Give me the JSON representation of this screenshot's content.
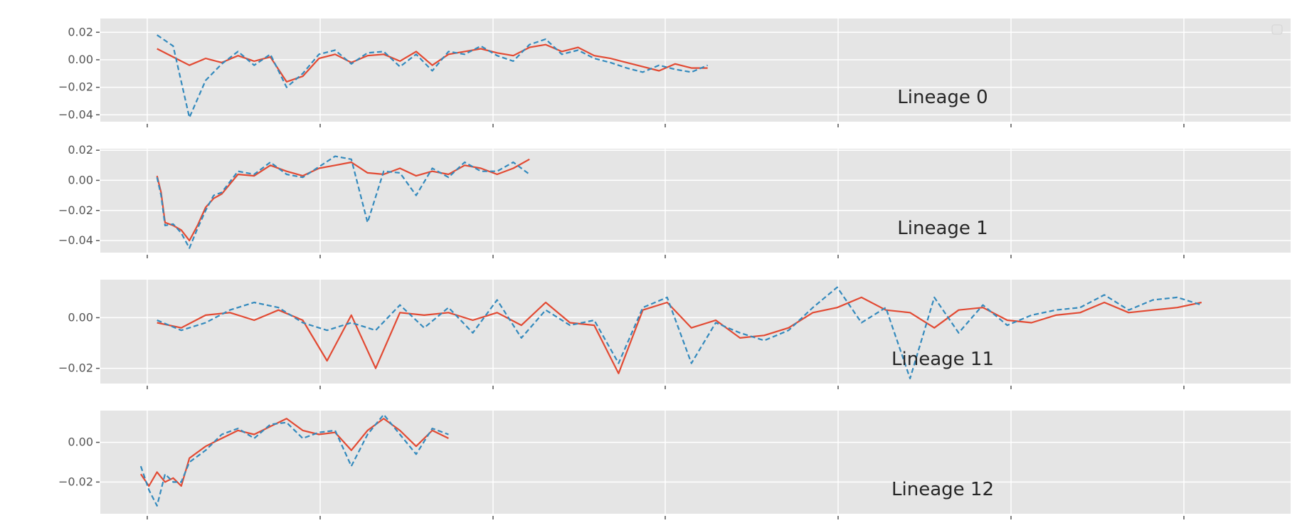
{
  "chart_data": [
    {
      "type": "line",
      "annotation": "Lineage 0",
      "xlim": [
        0,
        1470
      ],
      "ylim": [
        -0.045,
        0.03
      ],
      "yticks": [
        -0.04,
        -0.02,
        0.0,
        0.02
      ],
      "ytick_labels": [
        "−0.04",
        "−0.02",
        "0.00",
        "0.02"
      ],
      "xticks": [
        40,
        240,
        440,
        640,
        840,
        1040,
        1240,
        1440
      ],
      "grid": true,
      "legend": "empty, top-right",
      "series": [
        {
          "style": "solid",
          "color": "#E24A33",
          "x": [
            70,
            90,
            110,
            130,
            150,
            170,
            190,
            210,
            230,
            250,
            270,
            290,
            310,
            330,
            350,
            370,
            390,
            410,
            430,
            450,
            470,
            490,
            510,
            530,
            550,
            570,
            590,
            610,
            630,
            650,
            670,
            690,
            710,
            730,
            750
          ],
          "y": [
            0.008,
            0.002,
            -0.004,
            0.001,
            -0.002,
            0.003,
            -0.001,
            0.002,
            -0.016,
            -0.012,
            0.001,
            0.004,
            -0.002,
            0.003,
            0.004,
            -0.001,
            0.006,
            -0.004,
            0.004,
            0.006,
            0.008,
            0.005,
            0.003,
            0.009,
            0.011,
            0.006,
            0.009,
            0.003,
            0.001,
            -0.002,
            -0.005,
            -0.008,
            -0.003,
            -0.006,
            -0.006
          ]
        },
        {
          "style": "dashed",
          "color": "#348ABD",
          "x": [
            70,
            90,
            110,
            130,
            150,
            170,
            190,
            210,
            230,
            250,
            270,
            290,
            310,
            330,
            350,
            370,
            390,
            410,
            430,
            450,
            470,
            490,
            510,
            530,
            550,
            570,
            590,
            610,
            630,
            650,
            670,
            690,
            710,
            730,
            750
          ],
          "y": [
            0.018,
            0.01,
            -0.042,
            -0.015,
            -0.003,
            0.006,
            -0.004,
            0.004,
            -0.02,
            -0.01,
            0.004,
            0.007,
            -0.003,
            0.005,
            0.006,
            -0.005,
            0.004,
            -0.008,
            0.006,
            0.004,
            0.01,
            0.003,
            -0.001,
            0.011,
            0.015,
            0.004,
            0.007,
            0.001,
            -0.002,
            -0.006,
            -0.009,
            -0.004,
            -0.007,
            -0.009,
            -0.004
          ]
        }
      ]
    },
    {
      "type": "line",
      "annotation": "Lineage 1",
      "xlim": [
        0,
        1470
      ],
      "ylim": [
        -0.048,
        0.021
      ],
      "yticks": [
        -0.04,
        -0.02,
        0.0,
        0.02
      ],
      "ytick_labels": [
        "−0.04",
        "−0.02",
        "0.00",
        "0.02"
      ],
      "xticks": [
        40,
        240,
        440,
        640,
        840,
        1040,
        1240,
        1440
      ],
      "grid": true,
      "legend": "none",
      "series": [
        {
          "style": "solid",
          "color": "#E24A33",
          "x": [
            70,
            75,
            80,
            90,
            100,
            110,
            120,
            130,
            140,
            150,
            170,
            190,
            210,
            230,
            250,
            270,
            290,
            310,
            330,
            350,
            370,
            390,
            410,
            430,
            450,
            470,
            490,
            510,
            530
          ],
          "y": [
            0.003,
            -0.008,
            -0.028,
            -0.03,
            -0.033,
            -0.04,
            -0.03,
            -0.018,
            -0.012,
            -0.009,
            0.004,
            0.003,
            0.01,
            0.006,
            0.003,
            0.008,
            0.01,
            0.012,
            0.005,
            0.004,
            0.008,
            0.003,
            0.006,
            0.004,
            0.01,
            0.008,
            0.004,
            0.008,
            0.014
          ]
        },
        {
          "style": "dashed",
          "color": "#348ABD",
          "x": [
            70,
            75,
            80,
            90,
            100,
            110,
            120,
            130,
            140,
            150,
            170,
            190,
            210,
            230,
            250,
            270,
            290,
            310,
            330,
            350,
            370,
            390,
            410,
            430,
            450,
            470,
            490,
            510,
            530
          ],
          "y": [
            0.002,
            -0.01,
            -0.03,
            -0.029,
            -0.035,
            -0.045,
            -0.032,
            -0.02,
            -0.01,
            -0.008,
            0.006,
            0.004,
            0.012,
            0.004,
            0.002,
            0.009,
            0.016,
            0.014,
            -0.028,
            0.006,
            0.005,
            -0.01,
            0.008,
            0.002,
            0.012,
            0.006,
            0.006,
            0.012,
            0.004
          ]
        }
      ]
    },
    {
      "type": "line",
      "annotation": "Lineage 11",
      "xlim": [
        0,
        1470
      ],
      "ylim": [
        -0.026,
        0.015
      ],
      "yticks": [
        -0.02,
        0.0
      ],
      "ytick_labels": [
        "−0.02",
        "0.00"
      ],
      "xticks": [
        40,
        240,
        440,
        640,
        840,
        1040,
        1240,
        1440
      ],
      "grid": true,
      "legend": "none",
      "series": [
        {
          "style": "solid",
          "color": "#E24A33",
          "x": [
            70,
            100,
            130,
            160,
            190,
            220,
            250,
            280,
            310,
            340,
            370,
            400,
            430,
            460,
            490,
            520,
            550,
            580,
            610,
            640,
            670,
            700,
            730,
            760,
            790,
            820,
            850,
            880,
            910,
            940,
            970,
            1000,
            1030,
            1060,
            1090,
            1120,
            1150,
            1180,
            1210,
            1240,
            1270,
            1300,
            1330,
            1360
          ],
          "y": [
            -0.002,
            -0.004,
            0.001,
            0.002,
            -0.001,
            0.003,
            -0.001,
            -0.017,
            0.001,
            -0.02,
            0.002,
            0.001,
            0.002,
            -0.001,
            0.002,
            -0.003,
            0.006,
            -0.002,
            -0.003,
            -0.022,
            0.003,
            0.006,
            -0.004,
            -0.001,
            -0.008,
            -0.007,
            -0.004,
            0.002,
            0.004,
            0.008,
            0.003,
            0.002,
            -0.004,
            0.003,
            0.004,
            -0.001,
            -0.002,
            0.001,
            0.002,
            0.006,
            0.002,
            0.003,
            0.004,
            0.006
          ]
        },
        {
          "style": "dashed",
          "color": "#348ABD",
          "x": [
            70,
            100,
            130,
            160,
            190,
            220,
            250,
            280,
            310,
            340,
            370,
            400,
            430,
            460,
            490,
            520,
            550,
            580,
            610,
            640,
            670,
            700,
            730,
            760,
            790,
            820,
            850,
            880,
            910,
            940,
            970,
            1000,
            1030,
            1060,
            1090,
            1120,
            1150,
            1180,
            1210,
            1240,
            1270,
            1300,
            1330,
            1360
          ],
          "y": [
            -0.001,
            -0.005,
            -0.002,
            0.003,
            0.006,
            0.004,
            -0.002,
            -0.005,
            -0.002,
            -0.005,
            0.005,
            -0.004,
            0.004,
            -0.006,
            0.007,
            -0.008,
            0.003,
            -0.003,
            -0.001,
            -0.018,
            0.004,
            0.008,
            -0.018,
            -0.002,
            -0.006,
            -0.009,
            -0.005,
            0.004,
            0.012,
            -0.002,
            0.004,
            -0.024,
            0.008,
            -0.006,
            0.005,
            -0.003,
            0.001,
            0.003,
            0.004,
            0.009,
            0.003,
            0.007,
            0.008,
            0.005
          ]
        }
      ]
    },
    {
      "type": "line",
      "annotation": "Lineage 12",
      "xlim": [
        0,
        1470
      ],
      "ylim": [
        -0.036,
        0.016
      ],
      "yticks": [
        -0.02,
        0.0
      ],
      "ytick_labels": [
        "−0.02",
        "0.00"
      ],
      "xticks": [
        40,
        240,
        440,
        640,
        840,
        1040,
        1240,
        1440
      ],
      "grid": true,
      "legend": "none",
      "series": [
        {
          "style": "solid",
          "color": "#E24A33",
          "x": [
            50,
            60,
            70,
            80,
            90,
            100,
            110,
            130,
            150,
            170,
            190,
            210,
            230,
            250,
            270,
            290,
            310,
            330,
            350,
            370,
            390,
            410,
            430
          ],
          "y": [
            -0.016,
            -0.022,
            -0.015,
            -0.02,
            -0.018,
            -0.022,
            -0.008,
            -0.002,
            0.002,
            0.006,
            0.004,
            0.008,
            0.012,
            0.006,
            0.004,
            0.005,
            -0.004,
            0.006,
            0.012,
            0.006,
            -0.002,
            0.006,
            0.002
          ]
        },
        {
          "style": "dashed",
          "color": "#348ABD",
          "x": [
            50,
            60,
            70,
            80,
            90,
            100,
            110,
            130,
            150,
            170,
            190,
            210,
            230,
            250,
            270,
            290,
            310,
            330,
            350,
            370,
            390,
            410,
            430
          ],
          "y": [
            -0.012,
            -0.024,
            -0.032,
            -0.016,
            -0.02,
            -0.02,
            -0.01,
            -0.004,
            0.004,
            0.007,
            0.002,
            0.009,
            0.01,
            0.002,
            0.005,
            0.006,
            -0.012,
            0.004,
            0.014,
            0.004,
            -0.006,
            0.007,
            0.004
          ]
        }
      ]
    }
  ]
}
